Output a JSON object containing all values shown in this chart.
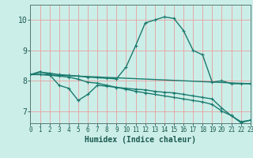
{
  "title": "",
  "xlabel": "Humidex (Indice chaleur)",
  "ylabel": "",
  "bg_color": "#cceee8",
  "line_color": "#1a7a6e",
  "grid_color": "#e8a0a0",
  "tick_color": "#1a5a50",
  "line1_x": [
    0,
    1,
    2,
    3,
    4,
    5,
    6,
    7,
    8,
    9,
    10,
    11,
    12,
    13,
    14,
    15,
    16,
    17,
    18,
    19,
    20,
    21,
    22,
    23
  ],
  "line1_y": [
    8.2,
    8.28,
    8.25,
    8.2,
    8.18,
    8.15,
    8.12,
    8.1,
    8.08,
    8.06,
    8.45,
    9.15,
    9.9,
    10.0,
    10.1,
    10.05,
    9.65,
    9.0,
    8.85,
    7.95,
    8.0,
    7.9,
    7.9,
    7.9
  ],
  "line2_x": [
    0,
    1,
    2,
    3,
    4,
    5,
    6,
    7,
    8,
    9,
    10,
    11,
    12,
    13,
    14,
    15,
    16,
    17,
    18,
    19,
    20,
    21,
    22,
    23
  ],
  "line2_y": [
    8.2,
    8.3,
    8.2,
    7.85,
    7.75,
    7.35,
    7.55,
    7.85,
    7.82,
    7.78,
    7.75,
    7.72,
    7.7,
    7.65,
    7.62,
    7.6,
    7.55,
    7.5,
    7.45,
    7.4,
    7.1,
    6.85,
    6.62,
    6.7
  ],
  "line3_x": [
    0,
    1,
    2,
    3,
    4,
    5,
    6,
    7,
    8,
    9,
    10,
    11,
    12,
    13,
    14,
    15,
    16,
    17,
    18,
    19,
    20,
    21,
    22,
    23
  ],
  "line3_y": [
    8.2,
    8.2,
    8.18,
    8.15,
    8.12,
    8.05,
    7.95,
    7.92,
    7.85,
    7.78,
    7.72,
    7.65,
    7.6,
    7.55,
    7.5,
    7.45,
    7.4,
    7.35,
    7.3,
    7.22,
    7.0,
    6.85,
    6.65,
    6.7
  ],
  "line4_x": [
    0,
    23
  ],
  "line4_y": [
    8.22,
    7.9
  ],
  "ylim": [
    6.6,
    10.5
  ],
  "xlim": [
    0,
    23
  ],
  "yticks": [
    7,
    8,
    9,
    10
  ],
  "xticks": [
    0,
    1,
    2,
    3,
    4,
    5,
    6,
    7,
    8,
    9,
    10,
    11,
    12,
    13,
    14,
    15,
    16,
    17,
    18,
    19,
    20,
    21,
    22,
    23
  ],
  "marker_size": 3.0,
  "linewidth": 1.0
}
